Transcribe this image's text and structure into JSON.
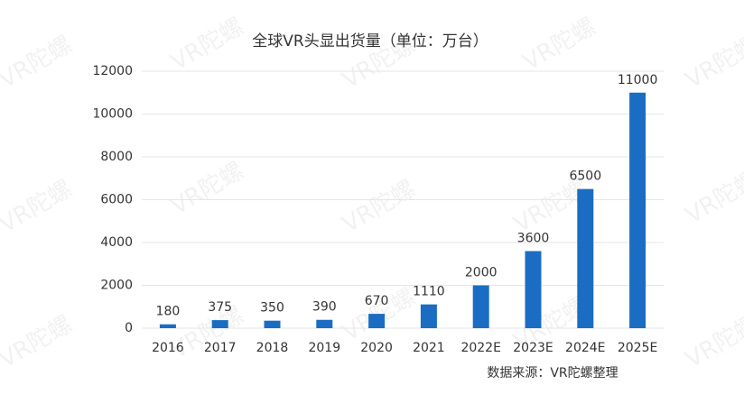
{
  "chart_data": {
    "type": "bar",
    "title": "全球VR头显出货量（单位：万台）",
    "categories": [
      "2016",
      "2017",
      "2018",
      "2019",
      "2020",
      "2021",
      "2022E",
      "2023E",
      "2024E",
      "2025E"
    ],
    "values": [
      180,
      375,
      350,
      390,
      670,
      1110,
      2000,
      3600,
      6500,
      11000
    ],
    "color": "#1a6dc2",
    "ylim": [
      0,
      12000
    ],
    "yticks": [
      0,
      2000,
      4000,
      6000,
      8000,
      10000,
      12000
    ],
    "grid": true,
    "source": "数据来源：VR陀螺整理",
    "watermark": "VR陀螺"
  }
}
